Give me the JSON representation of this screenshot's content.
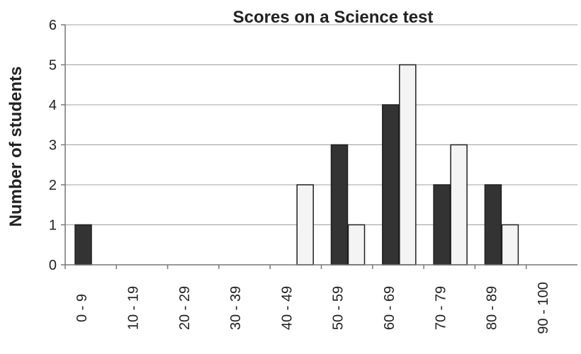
{
  "chart_data": {
    "type": "bar",
    "title": "Scores on a Science test",
    "xlabel": "",
    "ylabel": "Number of students",
    "categories": [
      "0 - 9",
      "10 - 19",
      "20 - 29",
      "30 - 39",
      "40 - 49",
      "50 - 59",
      "60 - 69",
      "70 - 79",
      "80 - 89",
      "90 - 100"
    ],
    "series": [
      {
        "values": [
          1,
          0,
          0,
          0,
          0,
          3,
          4,
          2,
          2,
          0
        ],
        "color": "#333333"
      },
      {
        "values": [
          0,
          0,
          0,
          0,
          2,
          1,
          5,
          3,
          1,
          0
        ],
        "color": "#f4f4f4"
      }
    ],
    "ylim": [
      0,
      6
    ],
    "yticks": [
      0,
      1,
      2,
      3,
      4,
      5,
      6
    ],
    "grid": true,
    "legend": "none"
  }
}
